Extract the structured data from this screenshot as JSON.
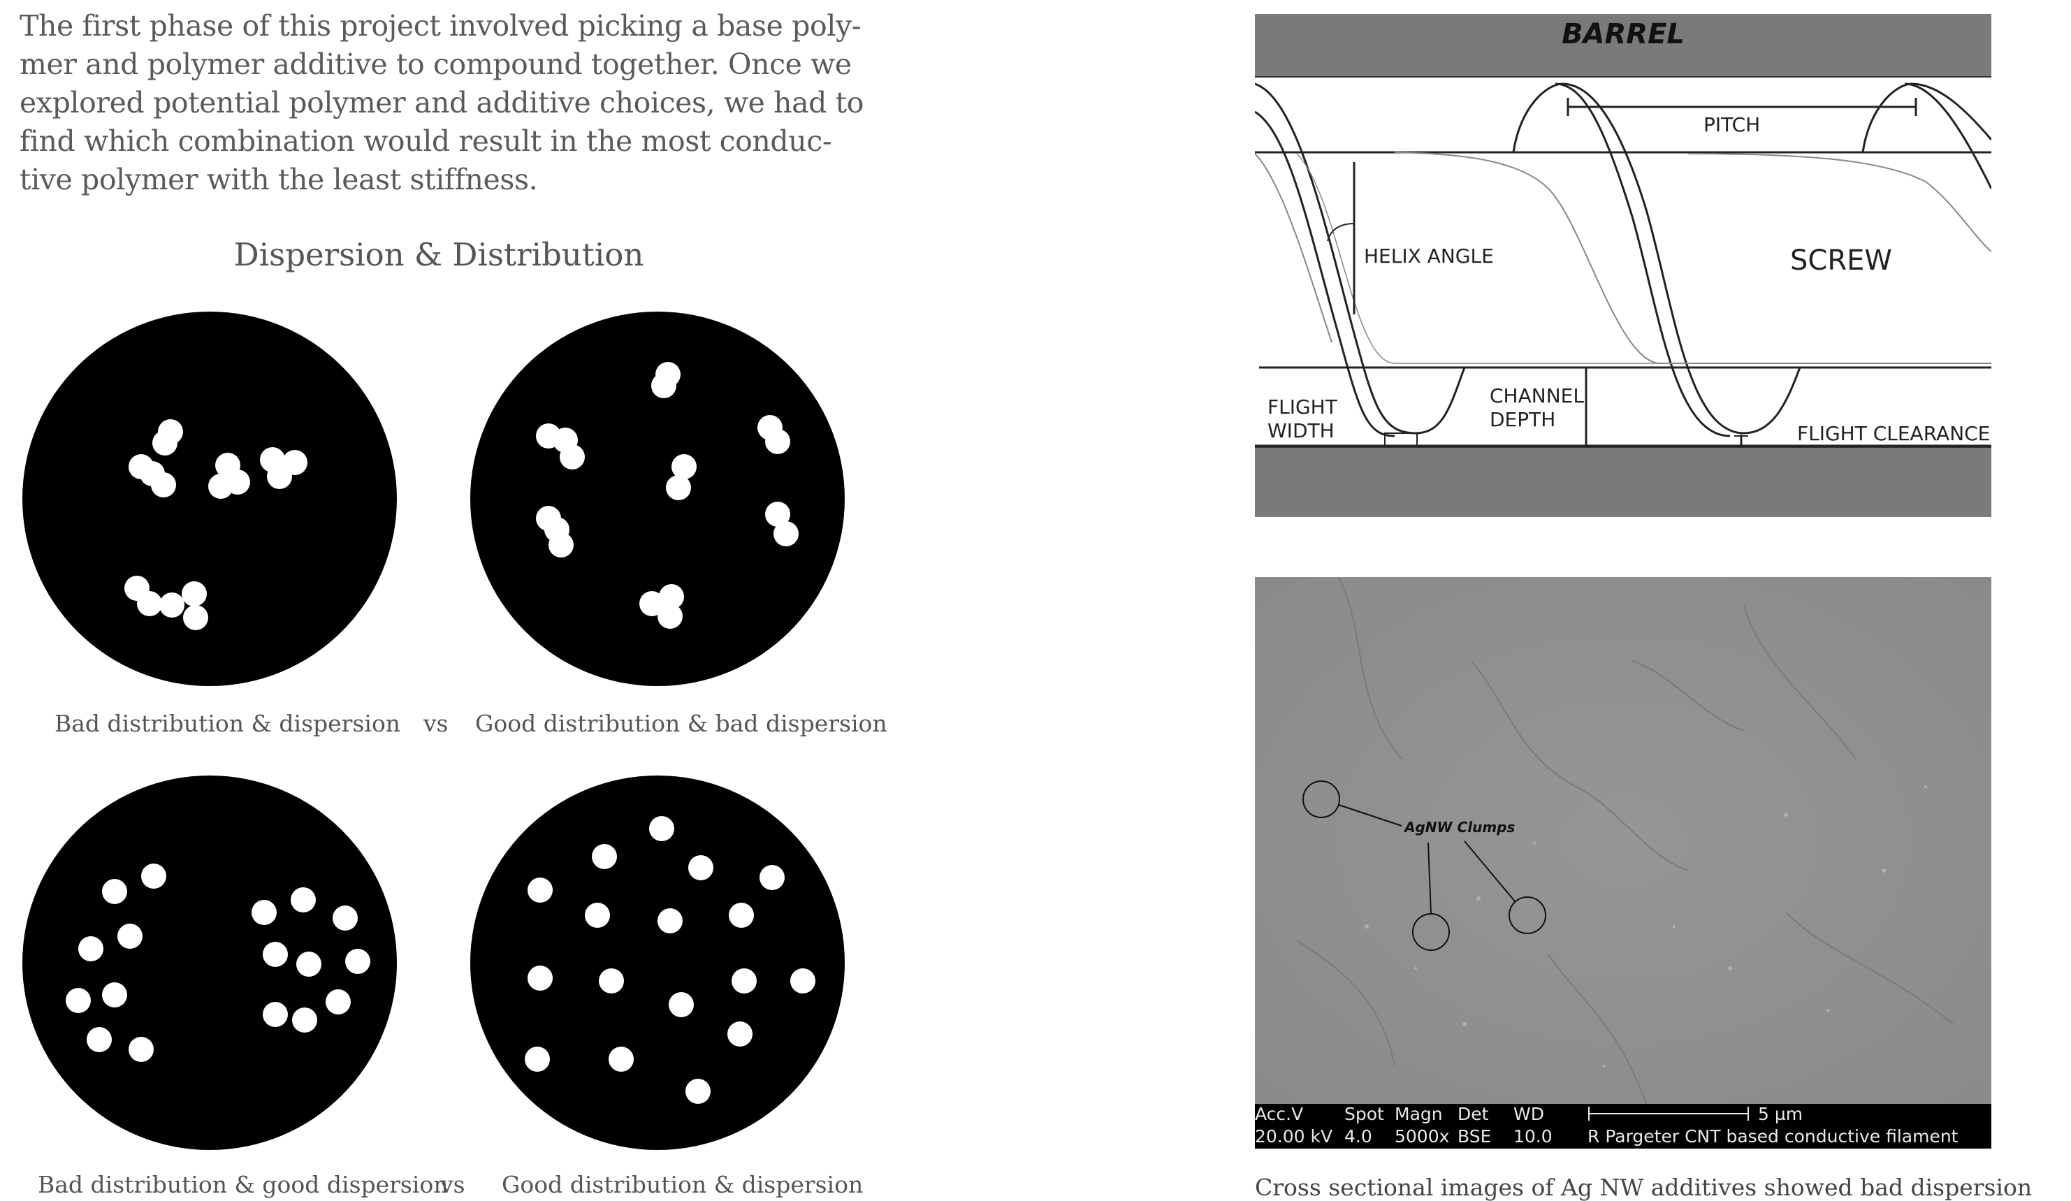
{
  "intro": {
    "lines": [
      "The first phase of this project involved picking a base poly-",
      "mer and polymer additive to compound together. Once we",
      "explored potential polymer and additive choices, we had to",
      "find which combination would result in the most conduc-",
      "tive polymer with the least stiffness."
    ]
  },
  "dispersion": {
    "title": "Dispersion & Distribution",
    "captions": [
      "Bad distribution & dispersion",
      "Good distribution & bad dispersion",
      "Bad distribution & good dispersion",
      "Good distribution & dispersion"
    ],
    "vs_label": "vs"
  },
  "screw_diagram": {
    "barrel_label": "BARREL",
    "pitch_label": "PITCH",
    "helix_angle_label": "HELIX ANGLE",
    "screw_label": "SCREW",
    "flight_width_label_1": "FLIGHT",
    "flight_width_label_2": "WIDTH",
    "channel_depth_label_1": "CHANNEL",
    "channel_depth_label_2": "DEPTH",
    "flight_clearance_label": "FLIGHT CLEARANCE",
    "barrel_color": "#7a7a7a"
  },
  "sem_image": {
    "annotation": "AgNW Clumps",
    "bar_headers": [
      "Acc.V",
      "Spot",
      "Magn",
      "Det",
      "WD"
    ],
    "bar_values": [
      "20.00 kV",
      "4.0",
      "5000x",
      "BSE",
      "10.0"
    ],
    "scale_label": "5 µm",
    "sample_label": "R Pargeter CNT based conductive filament",
    "caption": "Cross sectional images of Ag NW additives showed bad dispersion"
  }
}
